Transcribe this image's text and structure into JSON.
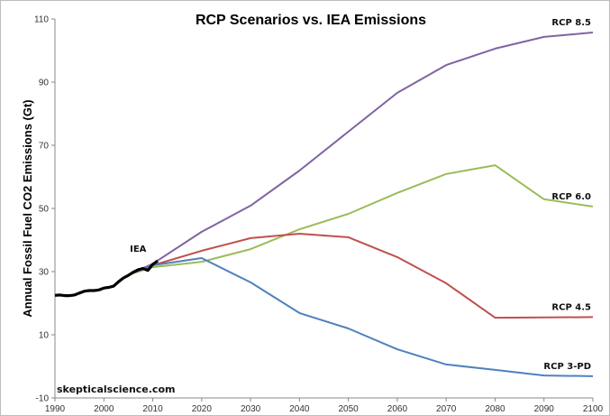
{
  "chart_data": {
    "type": "line",
    "title": "RCP Scenarios vs. IEA Emissions",
    "xlabel": "",
    "ylabel": "Annual Fossil Fuel CO2 Emissions (Gt)",
    "xlim": [
      1990,
      2100
    ],
    "ylim": [
      -10,
      110
    ],
    "x_ticks": [
      "1990",
      "2000",
      "2010",
      "2020",
      "2030",
      "2040",
      "2050",
      "2060",
      "2070",
      "2080",
      "2090",
      "2100"
    ],
    "y_ticks": [
      "-10",
      "10",
      "30",
      "50",
      "70",
      "90",
      "110"
    ],
    "grid": false,
    "legend": "direct labels at line ends",
    "watermark": "skepticalscience.com",
    "series": [
      {
        "name": "RCP 8.5",
        "color": "#8064a2",
        "x": [
          2005,
          2010,
          2020,
          2030,
          2040,
          2050,
          2060,
          2070,
          2080,
          2090,
          2100
        ],
        "y": [
          29.0,
          32.5,
          42.6,
          50.9,
          62.0,
          74.3,
          86.6,
          95.4,
          100.6,
          104.3,
          105.7
        ]
      },
      {
        "name": "RCP 6.0",
        "color": "#9bbb59",
        "x": [
          2005,
          2010,
          2020,
          2030,
          2040,
          2050,
          2060,
          2070,
          2080,
          2090,
          2100
        ],
        "y": [
          29.0,
          31.4,
          33.1,
          37.1,
          43.4,
          48.3,
          54.9,
          60.9,
          63.7,
          52.9,
          50.6
        ]
      },
      {
        "name": "RCP 4.5",
        "color": "#c0504d",
        "x": [
          2005,
          2010,
          2020,
          2030,
          2040,
          2050,
          2060,
          2070,
          2080,
          2090,
          2100
        ],
        "y": [
          29.0,
          32.0,
          36.6,
          40.6,
          42.0,
          40.9,
          34.6,
          26.3,
          15.4,
          15.5,
          15.6
        ]
      },
      {
        "name": "RCP 3-PD",
        "color": "#4f81bd",
        "x": [
          2005,
          2010,
          2020,
          2030,
          2040,
          2050,
          2060,
          2070,
          2080,
          2090,
          2100
        ],
        "y": [
          29.0,
          32.0,
          34.3,
          26.6,
          16.9,
          12.0,
          5.4,
          0.6,
          -1.1,
          -2.9,
          -3.1
        ]
      },
      {
        "name": "IEA",
        "color": "#000000",
        "x": [
          1990,
          1991,
          1992,
          1993,
          1994,
          1995,
          1996,
          1997,
          1998,
          1999,
          2000,
          2001,
          2002,
          2003,
          2004,
          2005,
          2006,
          2007,
          2008,
          2009,
          2010,
          2011
        ],
        "y": [
          22.5,
          22.6,
          22.4,
          22.4,
          22.6,
          23.2,
          23.8,
          24.0,
          24.0,
          24.2,
          24.8,
          25.0,
          25.4,
          26.8,
          28.0,
          28.8,
          29.8,
          30.6,
          31.0,
          30.4,
          32.3,
          33.4
        ]
      }
    ]
  }
}
